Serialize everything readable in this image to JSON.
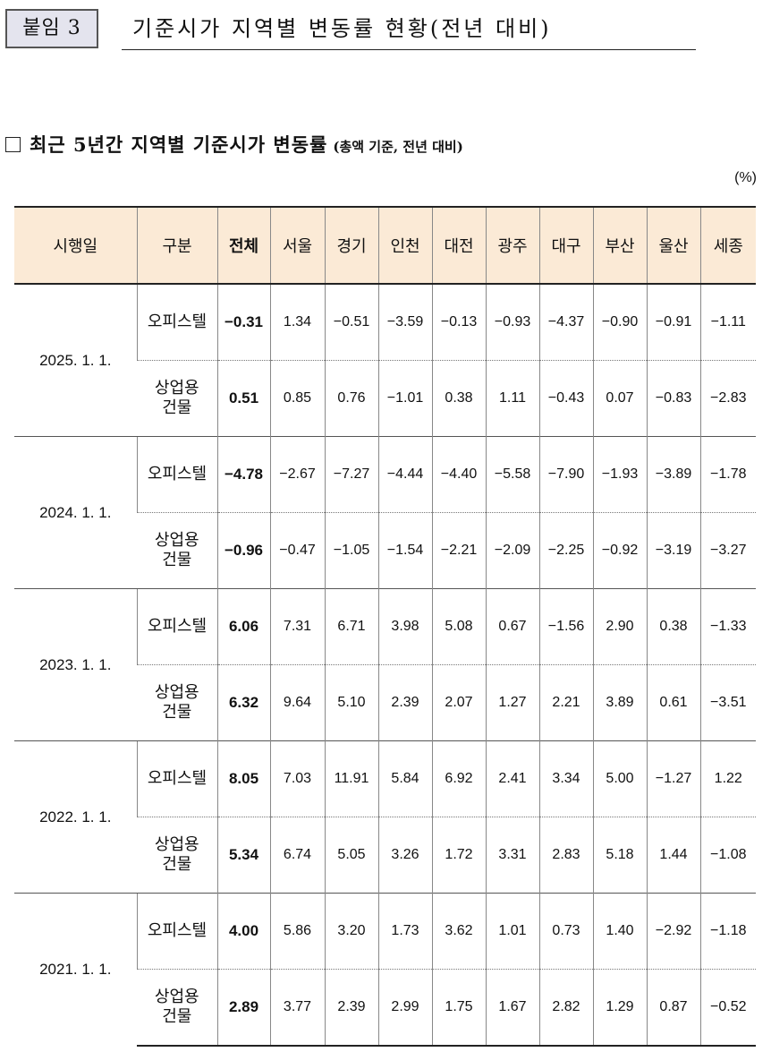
{
  "header": {
    "tag": "붙임 3",
    "title": "기준시가 지역별 변동률 현황(전년 대비)"
  },
  "section": {
    "main": "최근 5년간 지역별 기준시가 변동률",
    "note": "(총액 기준, 전년 대비)"
  },
  "unit": "(%)",
  "table": {
    "headers": [
      "시행일",
      "구분",
      "전체",
      "서울",
      "경기",
      "인천",
      "대전",
      "광주",
      "대구",
      "부산",
      "울산",
      "세종"
    ],
    "rows": [
      {
        "date": "2025. 1. 1.",
        "officetel": {
          "label": "오피스텔",
          "total": "−0.31",
          "values": [
            "1.34",
            "−0.51",
            "−3.59",
            "−0.13",
            "−0.93",
            "−4.37",
            "−0.90",
            "−0.91",
            "−1.11"
          ]
        },
        "commercial": {
          "label1": "상업용",
          "label2": "건물",
          "total": "0.51",
          "values": [
            "0.85",
            "0.76",
            "−1.01",
            "0.38",
            "1.11",
            "−0.43",
            "0.07",
            "−0.83",
            "−2.83"
          ]
        }
      },
      {
        "date": "2024. 1. 1.",
        "officetel": {
          "label": "오피스텔",
          "total": "−4.78",
          "values": [
            "−2.67",
            "−7.27",
            "−4.44",
            "−4.40",
            "−5.58",
            "−7.90",
            "−1.93",
            "−3.89",
            "−1.78"
          ]
        },
        "commercial": {
          "label1": "상업용",
          "label2": "건물",
          "total": "−0.96",
          "values": [
            "−0.47",
            "−1.05",
            "−1.54",
            "−2.21",
            "−2.09",
            "−2.25",
            "−0.92",
            "−3.19",
            "−3.27"
          ]
        }
      },
      {
        "date": "2023. 1. 1.",
        "officetel": {
          "label": "오피스텔",
          "total": "6.06",
          "values": [
            "7.31",
            "6.71",
            "3.98",
            "5.08",
            "0.67",
            "−1.56",
            "2.90",
            "0.38",
            "−1.33"
          ]
        },
        "commercial": {
          "label1": "상업용",
          "label2": "건물",
          "total": "6.32",
          "values": [
            "9.64",
            "5.10",
            "2.39",
            "2.07",
            "1.27",
            "2.21",
            "3.89",
            "0.61",
            "−3.51"
          ]
        }
      },
      {
        "date": "2022. 1. 1.",
        "officetel": {
          "label": "오피스텔",
          "total": "8.05",
          "values": [
            "7.03",
            "11.91",
            "5.84",
            "6.92",
            "2.41",
            "3.34",
            "5.00",
            "−1.27",
            "1.22"
          ]
        },
        "commercial": {
          "label1": "상업용",
          "label2": "건물",
          "total": "5.34",
          "values": [
            "6.74",
            "5.05",
            "3.26",
            "1.72",
            "3.31",
            "2.83",
            "5.18",
            "1.44",
            "−1.08"
          ]
        }
      },
      {
        "date": "2021. 1. 1.",
        "officetel": {
          "label": "오피스텔",
          "total": "4.00",
          "values": [
            "5.86",
            "3.20",
            "1.73",
            "3.62",
            "1.01",
            "0.73",
            "1.40",
            "−2.92",
            "−1.18"
          ]
        },
        "commercial": {
          "label1": "상업용",
          "label2": "건물",
          "total": "2.89",
          "values": [
            "3.77",
            "2.39",
            "2.99",
            "1.75",
            "1.67",
            "2.82",
            "1.29",
            "0.87",
            "−0.52"
          ]
        }
      }
    ]
  }
}
